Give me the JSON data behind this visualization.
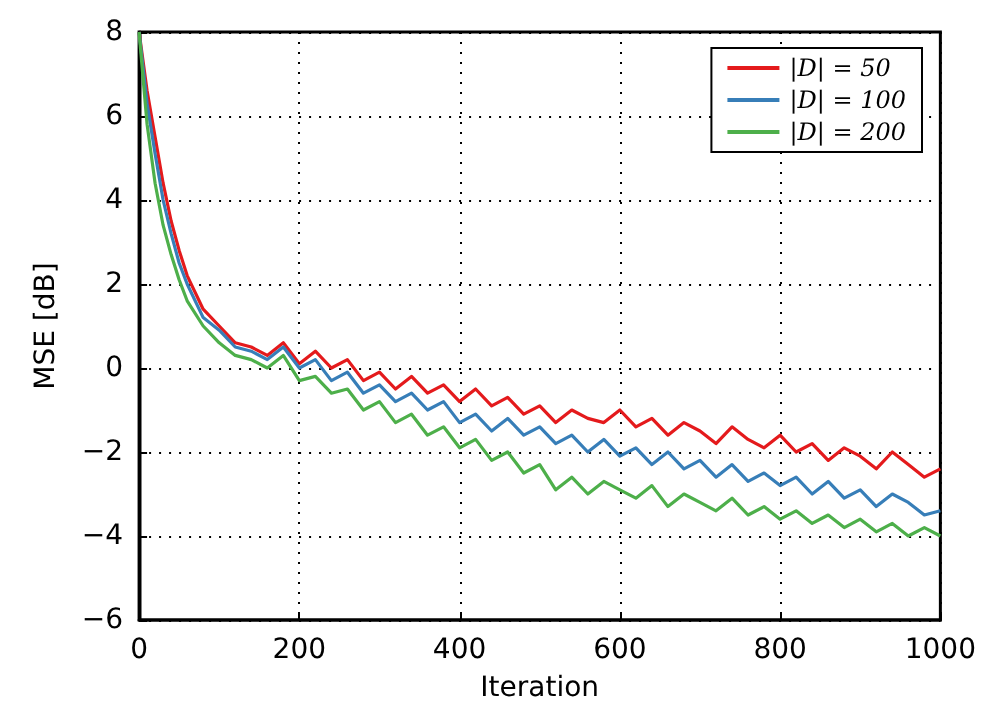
{
  "chart_data": {
    "type": "line",
    "xlabel": "Iteration",
    "ylabel": "MSE [dB]",
    "x": [
      0,
      10,
      20,
      30,
      40,
      50,
      60,
      80,
      100,
      120,
      140,
      160,
      180,
      200,
      220,
      240,
      260,
      280,
      300,
      320,
      340,
      360,
      380,
      400,
      420,
      440,
      460,
      480,
      500,
      520,
      540,
      560,
      580,
      600,
      620,
      640,
      660,
      680,
      700,
      720,
      740,
      760,
      780,
      800,
      820,
      840,
      860,
      880,
      900,
      920,
      940,
      960,
      980,
      1000
    ],
    "series": [
      {
        "name": "|D| = 50",
        "color": "#e41a1c",
        "values": [
          8,
          6.6,
          5.5,
          4.4,
          3.5,
          2.8,
          2.2,
          1.4,
          1.0,
          0.6,
          0.5,
          0.3,
          0.6,
          0.1,
          0.4,
          0.0,
          0.2,
          -0.3,
          -0.1,
          -0.5,
          -0.2,
          -0.6,
          -0.4,
          -0.8,
          -0.5,
          -0.9,
          -0.7,
          -1.1,
          -0.9,
          -1.3,
          -1.0,
          -1.2,
          -1.3,
          -1.0,
          -1.4,
          -1.2,
          -1.6,
          -1.3,
          -1.5,
          -1.8,
          -1.4,
          -1.7,
          -1.9,
          -1.6,
          -2.0,
          -1.8,
          -2.2,
          -1.9,
          -2.1,
          -2.4,
          -2.0,
          -2.3,
          -2.6,
          -2.4
        ]
      },
      {
        "name": "|D| = 100",
        "color": "#377eb8",
        "values": [
          8,
          6.3,
          5.1,
          4.0,
          3.2,
          2.5,
          2.0,
          1.2,
          0.9,
          0.5,
          0.4,
          0.2,
          0.5,
          0.0,
          0.2,
          -0.3,
          -0.1,
          -0.6,
          -0.4,
          -0.8,
          -0.6,
          -1.0,
          -0.8,
          -1.3,
          -1.1,
          -1.5,
          -1.2,
          -1.6,
          -1.4,
          -1.8,
          -1.6,
          -2.0,
          -1.7,
          -2.1,
          -1.9,
          -2.3,
          -2.0,
          -2.4,
          -2.2,
          -2.6,
          -2.3,
          -2.7,
          -2.5,
          -2.8,
          -2.6,
          -3.0,
          -2.7,
          -3.1,
          -2.9,
          -3.3,
          -3.0,
          -3.2,
          -3.5,
          -3.4
        ]
      },
      {
        "name": "|D| = 200",
        "color": "#4daf4a",
        "values": [
          8,
          5.8,
          4.4,
          3.4,
          2.7,
          2.1,
          1.6,
          1.0,
          0.6,
          0.3,
          0.2,
          0.0,
          0.3,
          -0.3,
          -0.2,
          -0.6,
          -0.5,
          -1.0,
          -0.8,
          -1.3,
          -1.1,
          -1.6,
          -1.4,
          -1.9,
          -1.7,
          -2.2,
          -2.0,
          -2.5,
          -2.3,
          -2.9,
          -2.6,
          -3.0,
          -2.7,
          -2.9,
          -3.1,
          -2.8,
          -3.3,
          -3.0,
          -3.2,
          -3.4,
          -3.1,
          -3.5,
          -3.3,
          -3.6,
          -3.4,
          -3.7,
          -3.5,
          -3.8,
          -3.6,
          -3.9,
          -3.7,
          -4.0,
          -3.8,
          -4.0
        ]
      }
    ],
    "xlim": [
      0,
      1000
    ],
    "xticks": [
      0,
      200,
      400,
      600,
      800,
      1000
    ],
    "ylim": [
      -6,
      8
    ],
    "yticks": [
      {
        "value": -6,
        "label": "−6"
      },
      {
        "value": -4,
        "label": "−4"
      },
      {
        "value": -2,
        "label": "−2"
      },
      0,
      2,
      4,
      6,
      8
    ],
    "grid": true,
    "legend": "top right",
    "marker": "none",
    "line_style": "solid"
  }
}
